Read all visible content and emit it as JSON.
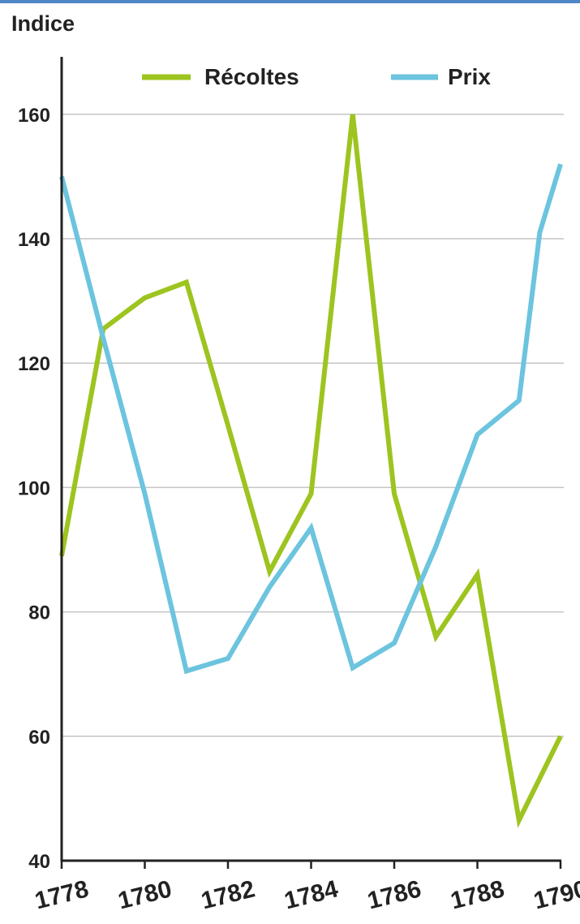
{
  "chart_data": {
    "type": "line",
    "title": "",
    "ylabel": "Indice",
    "xlabel": "",
    "x": [
      1778,
      1779,
      1780,
      1781,
      1782,
      1783,
      1784,
      1785,
      1786,
      1787,
      1788,
      1789,
      1789.5,
      1790
    ],
    "xticks": [
      "1778",
      "1780",
      "1782",
      "1784",
      "1786",
      "1788",
      "1790"
    ],
    "yticks": [
      "40",
      "60",
      "80",
      "100",
      "120",
      "140",
      "160"
    ],
    "ylim": [
      40,
      170
    ],
    "xlim": [
      1778,
      1790
    ],
    "grid": "horizontal",
    "legend_position": "top",
    "series": [
      {
        "name": "Récoltes",
        "color": "#9dc41f",
        "x": [
          1778,
          1779,
          1779.5,
          1780,
          1781,
          1782,
          1783,
          1784,
          1785,
          1786,
          1787,
          1788,
          1789,
          1790
        ],
        "values": [
          89,
          125.5,
          128,
          130.5,
          133,
          110,
          86.5,
          99,
          160,
          99,
          76,
          86,
          46.5,
          60
        ]
      },
      {
        "name": "Prix",
        "color": "#6cc4de",
        "x": [
          1778,
          1779,
          1780,
          1781,
          1782,
          1783,
          1784,
          1785,
          1786,
          1787,
          1788,
          1789,
          1789.5,
          1790
        ],
        "values": [
          150,
          124,
          99,
          70.5,
          72.5,
          84,
          93.5,
          71,
          75,
          90.5,
          108.5,
          114,
          141,
          152
        ]
      }
    ]
  }
}
